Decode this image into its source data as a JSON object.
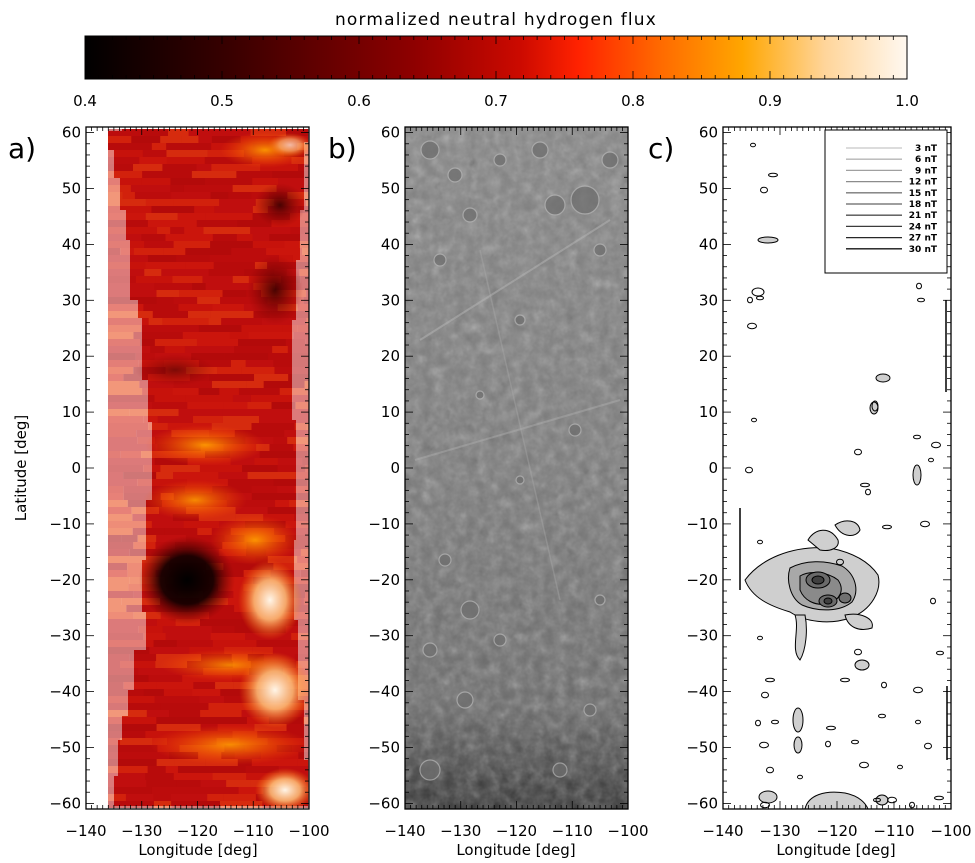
{
  "colorbar": {
    "title": "normalized neutral hydrogen flux",
    "ticks": [
      "0.4",
      "0.5",
      "0.6",
      "0.7",
      "0.8",
      "0.9",
      "1.0"
    ],
    "range": [
      0.4,
      1.0
    ]
  },
  "panels": {
    "a": {
      "letter": "a)"
    },
    "b": {
      "letter": "b)"
    },
    "c": {
      "letter": "c)"
    }
  },
  "axes": {
    "xlabel": "Longitude [deg]",
    "ylabel": "Latitude [deg]",
    "xticks": [
      "−140",
      "−130",
      "−120",
      "−110",
      "−100"
    ],
    "yticks": [
      "60",
      "50",
      "40",
      "30",
      "20",
      "10",
      "0",
      "−10",
      "−20",
      "−30",
      "−40",
      "−50",
      "−60"
    ],
    "xlim": [
      -140,
      -100
    ],
    "ylim": [
      -61,
      61
    ]
  },
  "legend": {
    "entries": [
      "3 nT",
      "6 nT",
      "9 nT",
      "12 nT",
      "15 nT",
      "18 nT",
      "21 nT",
      "24 nT",
      "27 nT",
      "30 nT"
    ],
    "position": "top-right"
  },
  "chart_data": [
    {
      "type": "heatmap",
      "panel": "a",
      "description_unit": "normalized neutral hydrogen flux",
      "xlabel": "Longitude [deg]",
      "ylabel": "Latitude [deg]",
      "xlim": [
        -140,
        -100
      ],
      "ylim": [
        -61,
        61
      ],
      "zlim": [
        0.4,
        1.0
      ],
      "coverage": [
        {
          "lat": 57,
          "lon_min": -135,
          "lon_max": -101
        },
        {
          "lat": 45,
          "lon_min": -133,
          "lon_max": -102
        },
        {
          "lat": 35,
          "lon_min": -132,
          "lon_max": -102
        },
        {
          "lat": 25,
          "lon_min": -131,
          "lon_max": -103
        },
        {
          "lat": 0,
          "lon_min": -130,
          "lon_max": -103
        },
        {
          "lat": -25,
          "lon_min": -130,
          "lon_max": -103
        },
        {
          "lat": -40,
          "lon_min": -132,
          "lon_max": -102
        },
        {
          "lat": -55,
          "lon_min": -134,
          "lon_max": -101
        }
      ],
      "features": [
        {
          "lat": -20,
          "lon": -123,
          "value": 0.42
        },
        {
          "lat": 28,
          "lon": -104,
          "value": 0.5
        },
        {
          "lat": -28,
          "lon": -106,
          "value": 0.95
        },
        {
          "lat": -40,
          "lon": -107,
          "value": 0.93
        },
        {
          "lat": 55,
          "lon": -106,
          "value": 0.85
        },
        {
          "lat": 5,
          "lon": -117,
          "value": 0.82
        },
        {
          "lat": -8,
          "lon": -120,
          "value": 0.8
        }
      ]
    },
    {
      "type": "contour",
      "panel": "c",
      "xlabel": "Longitude [deg]",
      "ylabel": "Latitude [deg]",
      "xlim": [
        -140,
        -100
      ],
      "ylim": [
        -61,
        61
      ],
      "levels_nT": [
        3,
        6,
        9,
        12,
        15,
        18,
        21,
        24,
        27,
        30
      ],
      "peak": {
        "lat": -20,
        "lon": -122,
        "level_nT": 30
      }
    }
  ]
}
